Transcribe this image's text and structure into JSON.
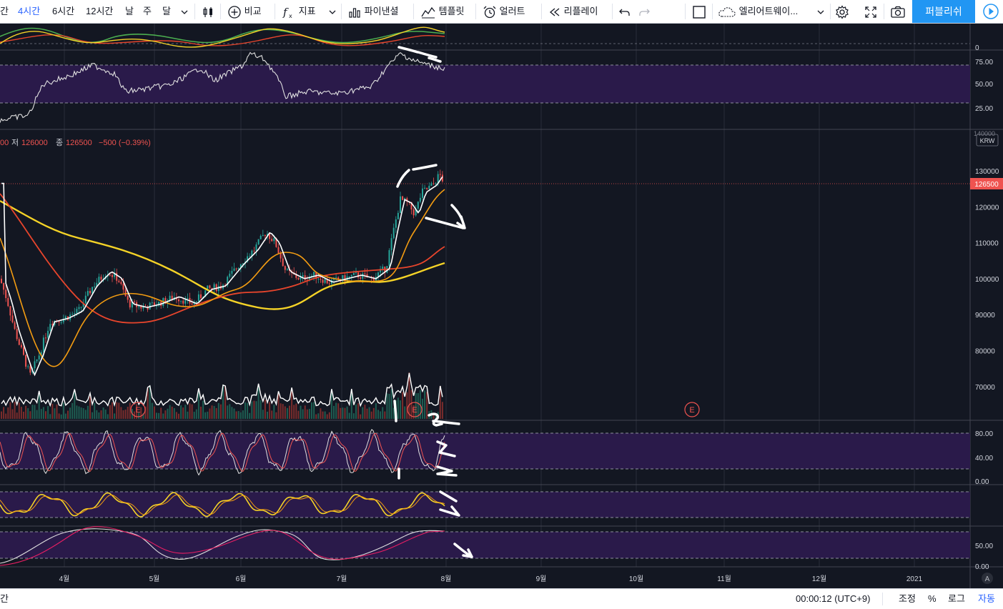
{
  "toolbar": {
    "intervals": [
      {
        "label": "간",
        "active": false
      },
      {
        "label": "4시간",
        "active": true
      },
      {
        "label": "6시간",
        "active": false
      },
      {
        "label": "12시간",
        "active": false
      },
      {
        "label": "날",
        "active": false
      },
      {
        "label": "주",
        "active": false
      },
      {
        "label": "달",
        "active": false
      }
    ],
    "compare_label": "비교",
    "indicators_label": "지표",
    "financials_label": "파이낸셜",
    "templates_label": "템플릿",
    "alert_label": "얼러트",
    "replay_label": "리플레이",
    "layout_name": "엘리어트웨이...",
    "publish_label": "퍼블리쉬"
  },
  "legend": {
    "prefix": "00",
    "low_label": "저",
    "low_value": "126000",
    "close_label": "종",
    "close_value": "126500",
    "change": "−500 (−0.39%)"
  },
  "price_axis": {
    "labels": [
      "130000",
      "120000",
      "110000",
      "100000",
      "90000",
      "80000",
      "70000"
    ],
    "current_price": "126500",
    "currency": "KRW",
    "top_partial": "140000"
  },
  "rsi_axis": {
    "labels": [
      "0",
      "75.00",
      "50.00",
      "25.00"
    ]
  },
  "stoch_axis": {
    "labels": [
      "80.00",
      "40.00",
      "0.00"
    ]
  },
  "bottom_osc_axis": {
    "labels": [
      "50.00",
      "0.00"
    ]
  },
  "time_axis": {
    "labels": [
      "4월",
      "5월",
      "6월",
      "7월",
      "8월",
      "9월",
      "10월",
      "11월",
      "12월",
      "2021"
    ]
  },
  "earnings_marker": "E",
  "auto_scale_label": "A",
  "bottombar": {
    "left_fragment": "간",
    "clock": "00:00:12 (UTC+9)",
    "adjust_label": "조정",
    "percent_label": "%",
    "log_label": "로그",
    "auto_label": "자동"
  },
  "colors": {
    "accent": "#2962ff",
    "publish": "#2196f3",
    "chart_bg": "#131722",
    "band": "#2a1a4a",
    "up": "#26a69a",
    "down": "#ef5350",
    "ma_yellow": "#f5d327",
    "ma_red": "#e8452c",
    "ma_orange": "#f39c12"
  }
}
